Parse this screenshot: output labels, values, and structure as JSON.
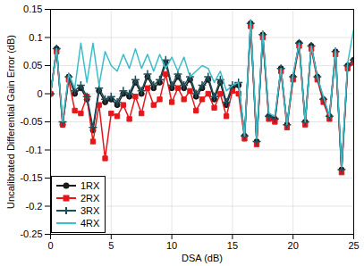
{
  "chart_data": {
    "type": "line",
    "x_label": "DSA (dB)",
    "y_label": "Uncalibrated Differential Gain Error (dB)",
    "x": [
      0,
      0.5,
      1,
      1.5,
      2,
      2.5,
      3,
      3.5,
      4,
      4.5,
      5,
      5.5,
      6,
      6.5,
      7,
      7.5,
      8,
      8.5,
      9,
      9.5,
      10,
      10.5,
      11,
      11.5,
      12,
      12.5,
      13,
      13.5,
      14,
      14.5,
      15,
      15.5,
      16,
      16.5,
      17,
      17.5,
      18,
      18.5,
      19,
      19.5,
      20,
      20.5,
      21,
      21.5,
      22,
      22.5,
      23,
      23.5,
      24,
      24.5,
      25
    ],
    "series": [
      {
        "name": "1RX",
        "color": "#1a1a1a",
        "marker": "circle",
        "values": [
          0,
          0.08,
          -0.055,
          0.03,
          0.0,
          0.01,
          -0.01,
          -0.065,
          0.005,
          -0.015,
          -0.01,
          -0.02,
          0.0,
          -0.005,
          0.02,
          0.0,
          0.03,
          0.01,
          0.02,
          0.055,
          0.01,
          0.03,
          0.01,
          0.025,
          -0.005,
          0.01,
          0.025,
          -0.01,
          0.02,
          -0.02,
          0.01,
          0.015,
          -0.075,
          0.125,
          -0.085,
          0.105,
          -0.04,
          -0.045,
          0.045,
          -0.055,
          0.03,
          0.09,
          -0.05,
          0.085,
          0.03,
          -0.01,
          -0.04,
          0.075,
          -0.135,
          0.05,
          0.06
        ]
      },
      {
        "name": "2RX",
        "color": "#e8161b",
        "marker": "square",
        "values": [
          0,
          0.075,
          -0.055,
          0.025,
          -0.03,
          -0.035,
          -0.005,
          -0.085,
          -0.02,
          -0.115,
          -0.035,
          -0.04,
          -0.02,
          -0.045,
          -0.005,
          -0.035,
          0.01,
          -0.02,
          -0.01,
          0.035,
          -0.015,
          0.01,
          -0.01,
          0.005,
          -0.03,
          -0.01,
          0.0,
          -0.025,
          0.0,
          -0.04,
          0.005,
          0.0,
          -0.08,
          0.12,
          -0.09,
          0.1,
          -0.045,
          -0.05,
          0.04,
          -0.06,
          0.025,
          0.085,
          -0.055,
          0.08,
          0.025,
          -0.015,
          -0.045,
          0.07,
          -0.14,
          0.045,
          0.055
        ]
      },
      {
        "name": "3RX",
        "color": "#1d4f5a",
        "marker": "plus",
        "values": [
          0,
          0.08,
          -0.05,
          0.03,
          0.005,
          0.015,
          -0.005,
          -0.06,
          0.01,
          -0.01,
          -0.005,
          -0.015,
          0.005,
          0.0,
          0.025,
          0.005,
          0.035,
          0.015,
          0.025,
          0.06,
          0.015,
          0.035,
          0.015,
          0.03,
          0.0,
          0.015,
          0.03,
          -0.005,
          0.025,
          -0.015,
          0.015,
          0.02,
          -0.075,
          0.125,
          -0.085,
          0.105,
          -0.04,
          -0.045,
          0.045,
          -0.055,
          0.03,
          0.09,
          -0.05,
          0.085,
          0.03,
          -0.01,
          -0.04,
          0.075,
          -0.135,
          0.05,
          0.06
        ]
      },
      {
        "name": "4RX",
        "color": "#3cbec9",
        "marker": "none",
        "values": [
          0,
          0.08,
          -0.05,
          0.035,
          0.01,
          0.09,
          0.02,
          0.09,
          0.015,
          0.075,
          0.05,
          0.04,
          0.07,
          0.045,
          0.08,
          0.045,
          0.07,
          0.04,
          0.07,
          0.045,
          0.065,
          0.04,
          0.065,
          0.03,
          0.04,
          0.05,
          0.045,
          0.02,
          0.04,
          0.005,
          0.015,
          0.02,
          -0.075,
          0.13,
          -0.08,
          0.11,
          -0.035,
          -0.04,
          0.045,
          -0.055,
          0.035,
          0.09,
          -0.05,
          0.085,
          0.03,
          -0.005,
          -0.04,
          0.08,
          -0.13,
          0.055,
          0.115
        ]
      }
    ],
    "xlim": [
      0,
      25
    ],
    "xticks": [
      0,
      5,
      10,
      15,
      20,
      25
    ],
    "ylim": [
      -0.25,
      0.15
    ],
    "yticks": [
      -0.25,
      -0.2,
      -0.15,
      -0.1,
      -0.05,
      0,
      0.05,
      0.1,
      0.15
    ],
    "grid": true,
    "legend": "lower left"
  }
}
